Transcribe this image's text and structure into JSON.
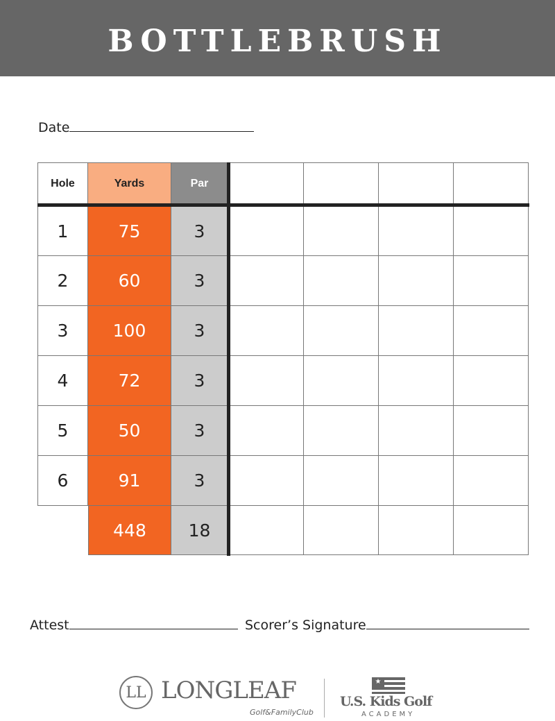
{
  "title": "BOTTLEBRUSH",
  "date_label": "Date",
  "headers": {
    "hole": "Hole",
    "yards": "Yards",
    "par": "Par"
  },
  "rows": [
    {
      "hole": "1",
      "yards": "75",
      "par": "3"
    },
    {
      "hole": "2",
      "yards": "60",
      "par": "3"
    },
    {
      "hole": "3",
      "yards": "100",
      "par": "3"
    },
    {
      "hole": "4",
      "yards": "72",
      "par": "3"
    },
    {
      "hole": "5",
      "yards": "50",
      "par": "3"
    },
    {
      "hole": "6",
      "yards": "91",
      "par": "3"
    }
  ],
  "totals": {
    "yards": "448",
    "par": "18"
  },
  "attest_label": "Attest",
  "scorer_label": "Scorer’s Signature",
  "logos": {
    "longleaf": "LONGLEAF",
    "longleaf_sub": "Golf&FamilyClub",
    "uskids": "U.S. Kids Golf",
    "uskids_sub": "ACADEMY"
  },
  "colors": {
    "header": "#666666",
    "yards": "#f26522",
    "yards_header": "#f9ad81",
    "par": "#cccccc",
    "par_header": "#8c8c8c"
  }
}
